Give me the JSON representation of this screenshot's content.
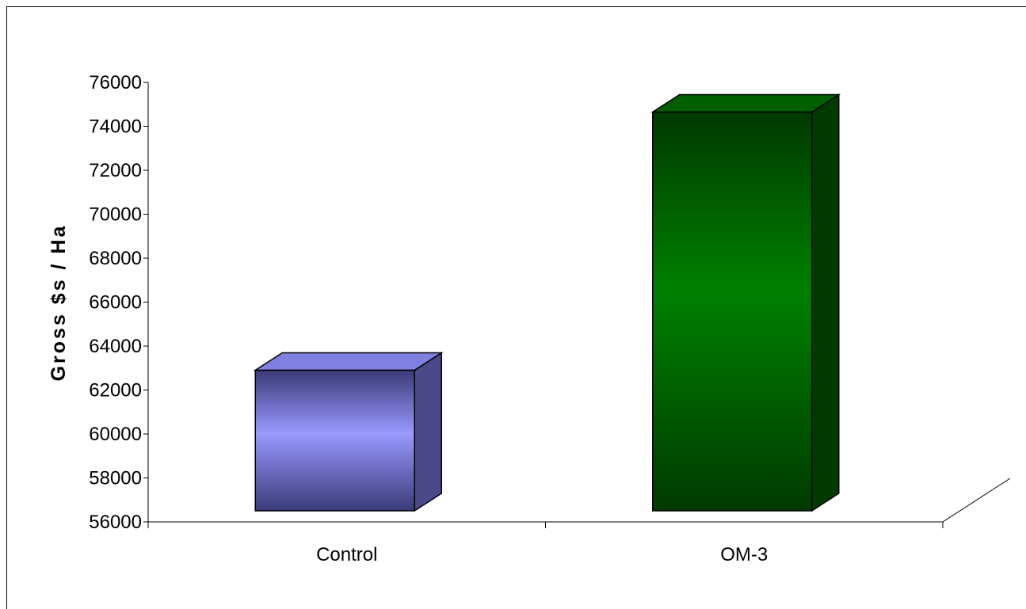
{
  "chart_data": {
    "type": "bar",
    "categories": [
      "Control",
      "OM-3"
    ],
    "values": [
      62900,
      74650
    ],
    "title": "",
    "xlabel": "",
    "ylabel": "Gross $s / Ha",
    "ylim": [
      56000,
      76000
    ],
    "yticks": [
      "76000",
      "74000",
      "72000",
      "70000",
      "68000",
      "66000",
      "64000",
      "62000",
      "60000",
      "58000",
      "56000"
    ],
    "grid": false,
    "legend": "none",
    "colors": {
      "Control": "#9999ff",
      "OM-3": "#008000"
    }
  }
}
